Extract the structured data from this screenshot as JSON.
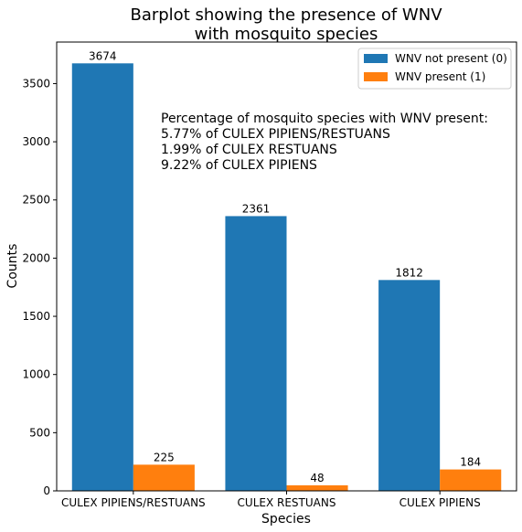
{
  "chart_data": {
    "type": "bar",
    "title_lines": [
      "Barplot showing the presence of WNV",
      "with mosquito species"
    ],
    "xlabel": "Species",
    "ylabel": "Counts",
    "categories": [
      "CULEX PIPIENS/RESTUANS",
      "CULEX RESTUANS",
      "CULEX PIPIENS"
    ],
    "series": [
      {
        "name": "WNV not present (0)",
        "color": "#1f77b4",
        "values": [
          3674,
          2361,
          1812
        ]
      },
      {
        "name": "WNV present (1)",
        "color": "#ff7f0e",
        "values": [
          225,
          48,
          184
        ]
      }
    ],
    "ylim": [
      0,
      3857
    ],
    "yticks": [
      0,
      500,
      1000,
      1500,
      2000,
      2500,
      3000,
      3500
    ],
    "legend_position": "top-right",
    "grid": false,
    "annotation_lines": [
      "Percentage of mosquito species with WNV present:",
      "5.77% of CULEX PIPIENS/RESTUANS",
      "1.99% of CULEX RESTUANS",
      "9.22% of CULEX PIPIENS"
    ]
  }
}
